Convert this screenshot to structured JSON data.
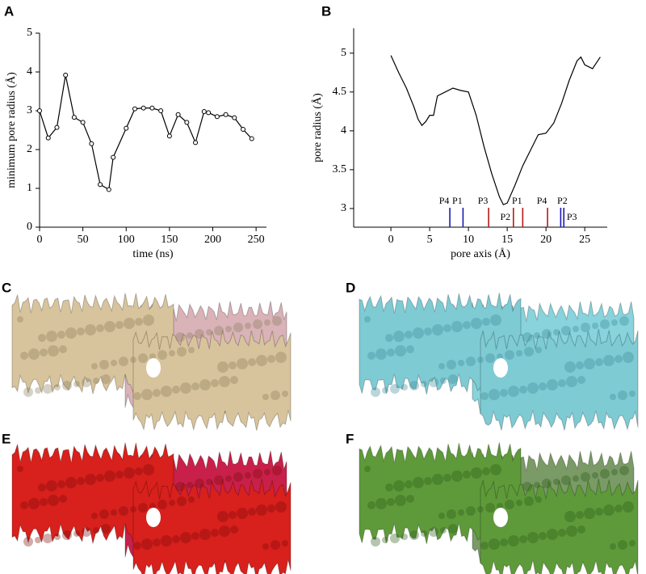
{
  "panel_labels": [
    "A",
    "B",
    "C",
    "D",
    "E",
    "F"
  ],
  "chart_data": [
    {
      "type": "line",
      "x_label": "time (ns)",
      "y_label": "minimum pore radius (Å)",
      "color": "#000000",
      "markers": true,
      "x": [
        0,
        10,
        20,
        30,
        40,
        50,
        60,
        70,
        80,
        85,
        100,
        110,
        120,
        130,
        140,
        150,
        160,
        170,
        180,
        190,
        195,
        205,
        215,
        225,
        235,
        245
      ],
      "values": [
        3.0,
        2.3,
        2.57,
        3.92,
        2.83,
        2.7,
        2.15,
        1.1,
        0.97,
        1.8,
        2.55,
        3.05,
        3.07,
        3.07,
        3.0,
        2.35,
        2.9,
        2.7,
        2.18,
        2.98,
        2.95,
        2.85,
        2.9,
        2.82,
        2.52,
        2.28
      ],
      "xlim": [
        0,
        262
      ],
      "ylim": [
        0,
        5
      ],
      "xticks": [
        0,
        50,
        100,
        150,
        200,
        250
      ],
      "yticks": [
        0,
        1,
        2,
        3,
        4,
        5
      ]
    },
    {
      "type": "line",
      "x_label": "pore axis (Å)",
      "y_label": "pore radius (Å)",
      "color": "#000000",
      "markers": false,
      "x": [
        0,
        1,
        2,
        3,
        3.5,
        4,
        4.5,
        5,
        5.5,
        6,
        7,
        8,
        9,
        10,
        11,
        12,
        13,
        14,
        14.5,
        15,
        16,
        17,
        18,
        19,
        20,
        21,
        22,
        23,
        24,
        24.5,
        25,
        26,
        27
      ],
      "values": [
        4.97,
        4.75,
        4.55,
        4.3,
        4.15,
        4.07,
        4.12,
        4.2,
        4.2,
        4.45,
        4.5,
        4.55,
        4.52,
        4.5,
        4.2,
        3.8,
        3.45,
        3.15,
        3.05,
        3.07,
        3.3,
        3.55,
        3.75,
        3.95,
        3.97,
        4.1,
        4.35,
        4.65,
        4.9,
        4.95,
        4.85,
        4.8,
        4.95
      ],
      "xlim": [
        -4.8,
        27.9
      ],
      "ylim": [
        2.76,
        5.32
      ],
      "xticks": [
        0,
        5,
        10,
        15,
        20,
        25
      ],
      "yticks": [
        3,
        3.5,
        4,
        4.5,
        5
      ],
      "annotations": [
        {
          "label": "P4",
          "x": 7.6,
          "color": "#1a1ab4"
        },
        {
          "label": "P1",
          "x": 9.3,
          "color": "#1a1ab4"
        },
        {
          "label": "P3",
          "x": 12.6,
          "color": "#b41a1a"
        },
        {
          "label": "P2",
          "x": 15.8,
          "color": "#b41a1a"
        },
        {
          "label": "P1",
          "x": 17.0,
          "color": "#b41a1a"
        },
        {
          "label": "P4",
          "x": 20.2,
          "color": "#b41a1a"
        },
        {
          "label": "P2",
          "x": 21.9,
          "color": "#1a1ab4"
        },
        {
          "label": "P3",
          "x": 22.3,
          "color": "#1a1ab4"
        }
      ]
    }
  ]
}
